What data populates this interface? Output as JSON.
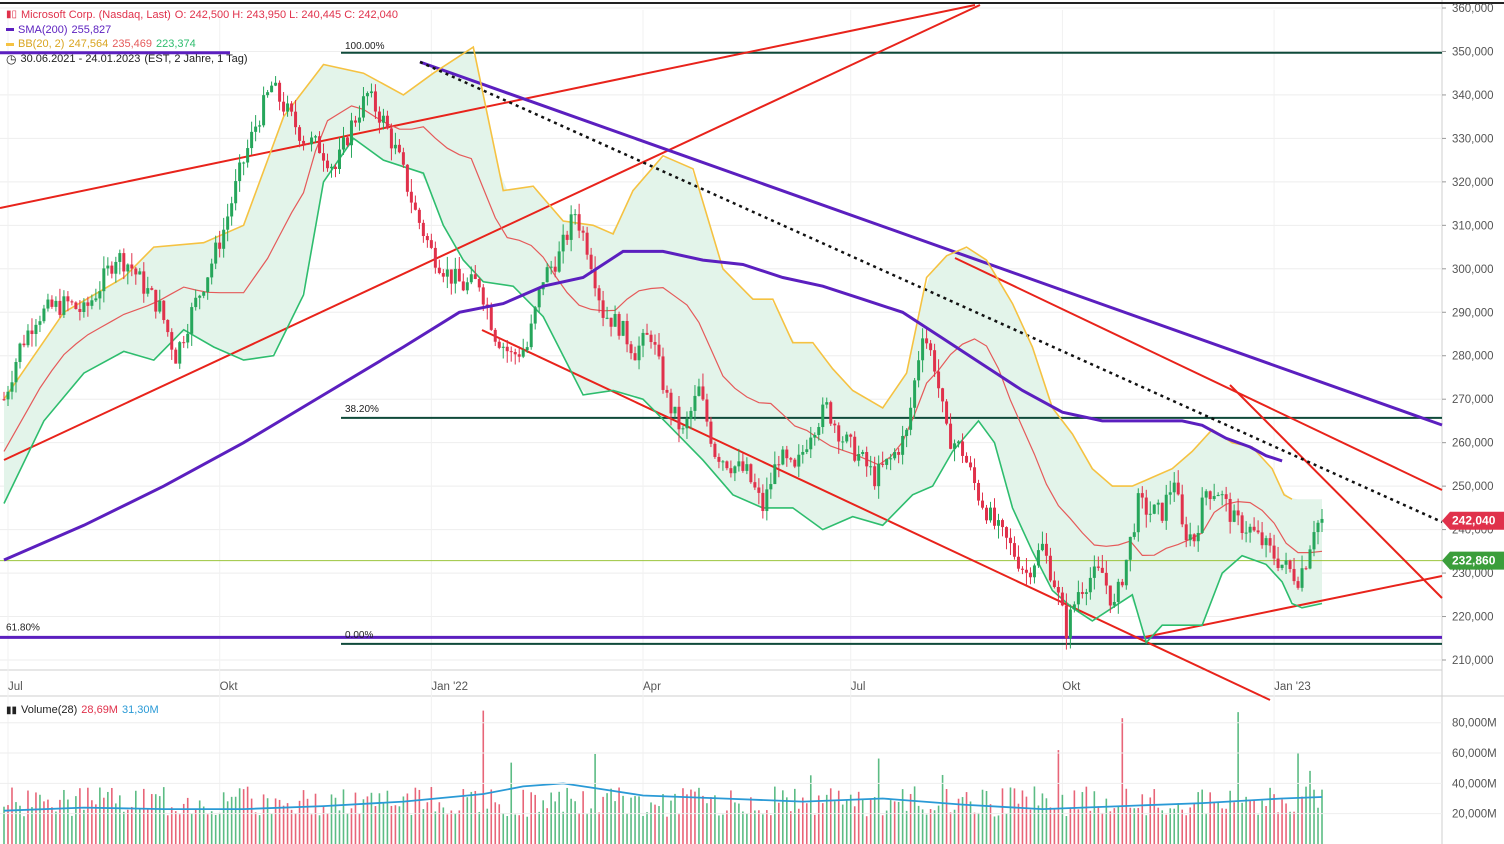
{
  "header": {
    "title": "Microsoft Corp. (Nasdaq, Last)",
    "ohlc": "O: 242,500  H: 243,950  L: 240,445  C: 242,040",
    "sma_label": "SMA(200)",
    "sma_value": "255,827",
    "bb_label": "BB(20, 2)",
    "bb_upper": "247,564",
    "bb_mid": "235,469",
    "bb_lower": "223,374",
    "range": "30.06.2021 - 24.01.2023",
    "range_detail": "(EST, 2 Jahre, 1 Tag)",
    "volume_label": "Volume(28)",
    "volume_value": "28,69M",
    "volume_avg": "31,30M"
  },
  "colors": {
    "up": "#26a65b",
    "down": "#e0314b",
    "sma": "#5b1fbf",
    "bb_upper": "#f5c242",
    "bb_mid": "#e55a5a",
    "bb_lower": "#2ebd6e",
    "band_fill": "#e3f4ea",
    "trend_red": "#e8231b",
    "fib_line": "#0f4a3a",
    "price_tag": "#e0314b",
    "level_tag": "#3b9e3b",
    "vol_avg": "#2a9ad6"
  },
  "chart_data": {
    "type": "candlestick",
    "ylim": [
      205,
      360
    ],
    "yticks": [
      "210,000",
      "220,000",
      "230,000",
      "240,000",
      "250,000",
      "260,000",
      "270,000",
      "280,000",
      "290,000",
      "300,000",
      "310,000",
      "320,000",
      "330,000",
      "340,000",
      "350,000",
      "360,000"
    ],
    "xticks": [
      "Jul",
      "Okt",
      "Jan '22",
      "Apr",
      "Jul",
      "Okt",
      "Jan '23"
    ],
    "last_price_label": "242,040",
    "level_label": "232,860",
    "fib_labels": [
      "100.00%",
      "38.20%",
      "61.80%",
      "0.00%"
    ],
    "volume_yticks": [
      "20,000M",
      "40,000M",
      "60,000M",
      "80,000M"
    ],
    "close_series": [
      [
        0,
        270
      ],
      [
        8,
        282
      ],
      [
        16,
        289
      ],
      [
        24,
        291
      ],
      [
        32,
        292
      ],
      [
        40,
        290
      ],
      [
        48,
        296
      ],
      [
        56,
        303
      ],
      [
        63,
        301
      ],
      [
        70,
        296
      ],
      [
        78,
        291
      ],
      [
        86,
        280
      ],
      [
        94,
        290
      ],
      [
        102,
        299
      ],
      [
        110,
        309
      ],
      [
        118,
        322
      ],
      [
        126,
        333
      ],
      [
        134,
        342
      ],
      [
        142,
        336
      ],
      [
        150,
        330
      ],
      [
        158,
        328
      ],
      [
        166,
        323
      ],
      [
        174,
        333
      ],
      [
        182,
        340
      ],
      [
        190,
        334
      ],
      [
        198,
        325
      ],
      [
        206,
        313
      ],
      [
        214,
        304
      ],
      [
        222,
        299
      ],
      [
        230,
        296
      ],
      [
        238,
        297
      ],
      [
        246,
        285
      ],
      [
        254,
        280
      ],
      [
        262,
        282
      ],
      [
        270,
        298
      ],
      [
        278,
        303
      ],
      [
        286,
        313
      ],
      [
        293,
        304
      ],
      [
        300,
        290
      ],
      [
        308,
        287
      ],
      [
        316,
        281
      ],
      [
        324,
        285
      ],
      [
        332,
        270
      ],
      [
        340,
        262
      ],
      [
        348,
        272
      ],
      [
        356,
        258
      ],
      [
        364,
        255
      ],
      [
        372,
        253
      ],
      [
        380,
        245
      ],
      [
        388,
        257
      ],
      [
        396,
        253
      ],
      [
        404,
        263
      ],
      [
        412,
        268
      ],
      [
        420,
        261
      ],
      [
        428,
        257
      ],
      [
        436,
        252
      ],
      [
        444,
        256
      ],
      [
        452,
        262
      ],
      [
        460,
        286
      ],
      [
        466,
        278
      ],
      [
        472,
        262
      ],
      [
        480,
        258
      ],
      [
        488,
        248
      ],
      [
        496,
        241
      ],
      [
        504,
        236
      ],
      [
        512,
        230
      ],
      [
        520,
        236
      ],
      [
        526,
        228
      ],
      [
        532,
        217
      ],
      [
        538,
        226
      ],
      [
        544,
        229
      ],
      [
        550,
        230
      ],
      [
        556,
        222
      ],
      [
        562,
        233
      ],
      [
        568,
        246
      ],
      [
        574,
        244
      ],
      [
        580,
        244
      ],
      [
        586,
        252
      ],
      [
        590,
        240
      ],
      [
        596,
        238
      ],
      [
        602,
        249
      ],
      [
        608,
        249
      ],
      [
        616,
        242
      ],
      [
        624,
        240
      ],
      [
        632,
        236
      ],
      [
        640,
        232
      ],
      [
        648,
        229
      ],
      [
        652,
        233
      ],
      [
        656,
        241
      ],
      [
        660,
        242
      ]
    ],
    "sma200_series": [
      [
        0,
        233
      ],
      [
        40,
        241
      ],
      [
        80,
        250
      ],
      [
        120,
        260
      ],
      [
        160,
        271
      ],
      [
        200,
        282
      ],
      [
        228,
        290
      ],
      [
        250,
        292
      ],
      [
        270,
        296
      ],
      [
        290,
        298
      ],
      [
        310,
        304
      ],
      [
        330,
        304
      ],
      [
        350,
        302
      ],
      [
        370,
        301
      ],
      [
        390,
        298
      ],
      [
        410,
        296
      ],
      [
        430,
        293
      ],
      [
        450,
        290
      ],
      [
        470,
        284
      ],
      [
        490,
        278
      ],
      [
        510,
        272
      ],
      [
        530,
        267
      ],
      [
        550,
        265
      ],
      [
        570,
        265
      ],
      [
        590,
        265
      ],
      [
        600,
        264
      ],
      [
        612,
        261
      ],
      [
        624,
        259
      ],
      [
        632,
        257
      ],
      [
        640,
        255.8
      ]
    ],
    "bb_upper_series": [
      [
        0,
        270
      ],
      [
        30,
        290
      ],
      [
        60,
        298
      ],
      [
        75,
        305
      ],
      [
        100,
        306
      ],
      [
        120,
        310
      ],
      [
        140,
        335
      ],
      [
        160,
        347
      ],
      [
        180,
        345
      ],
      [
        200,
        340
      ],
      [
        215,
        345
      ],
      [
        235,
        351
      ],
      [
        250,
        318
      ],
      [
        265,
        319
      ],
      [
        280,
        311
      ],
      [
        295,
        310
      ],
      [
        305,
        308
      ],
      [
        315,
        318
      ],
      [
        330,
        326
      ],
      [
        345,
        323
      ],
      [
        360,
        300
      ],
      [
        375,
        293
      ],
      [
        385,
        293
      ],
      [
        395,
        283
      ],
      [
        405,
        283
      ],
      [
        415,
        277
      ],
      [
        425,
        272
      ],
      [
        440,
        268
      ],
      [
        452,
        276
      ],
      [
        462,
        298
      ],
      [
        472,
        303
      ],
      [
        482,
        305
      ],
      [
        492,
        302
      ],
      [
        505,
        292
      ],
      [
        515,
        282
      ],
      [
        525,
        268
      ],
      [
        535,
        262
      ],
      [
        545,
        254
      ],
      [
        555,
        250
      ],
      [
        565,
        250
      ],
      [
        575,
        252
      ],
      [
        585,
        254
      ],
      [
        595,
        258
      ],
      [
        605,
        263
      ],
      [
        615,
        260
      ],
      [
        625,
        259
      ],
      [
        635,
        254
      ],
      [
        641,
        248
      ],
      [
        645,
        247
      ]
    ],
    "bb_lower_series": [
      [
        0,
        246
      ],
      [
        20,
        265
      ],
      [
        40,
        276
      ],
      [
        60,
        281
      ],
      [
        75,
        279
      ],
      [
        90,
        286
      ],
      [
        105,
        282
      ],
      [
        120,
        279
      ],
      [
        135,
        280
      ],
      [
        150,
        294
      ],
      [
        160,
        320
      ],
      [
        175,
        330
      ],
      [
        190,
        325
      ],
      [
        210,
        322
      ],
      [
        220,
        310
      ],
      [
        230,
        302
      ],
      [
        240,
        297
      ],
      [
        255,
        296
      ],
      [
        270,
        289
      ],
      [
        290,
        271
      ],
      [
        305,
        272
      ],
      [
        320,
        270
      ],
      [
        335,
        263
      ],
      [
        350,
        256
      ],
      [
        365,
        248
      ],
      [
        380,
        245
      ],
      [
        395,
        245
      ],
      [
        410,
        240
      ],
      [
        425,
        243
      ],
      [
        440,
        241
      ],
      [
        455,
        248
      ],
      [
        465,
        250
      ],
      [
        475,
        258
      ],
      [
        488,
        265
      ],
      [
        496,
        260
      ],
      [
        505,
        245
      ],
      [
        515,
        235
      ],
      [
        525,
        226
      ],
      [
        535,
        222
      ],
      [
        545,
        219
      ],
      [
        555,
        222
      ],
      [
        565,
        225
      ],
      [
        572,
        214
      ],
      [
        580,
        218
      ],
      [
        590,
        218
      ],
      [
        600,
        218
      ],
      [
        610,
        230
      ],
      [
        620,
        234
      ],
      [
        632,
        232
      ],
      [
        640,
        228
      ],
      [
        645,
        223
      ],
      [
        650,
        222
      ],
      [
        660,
        223
      ]
    ],
    "volume_avg_series": [
      [
        0,
        22
      ],
      [
        40,
        24
      ],
      [
        80,
        23
      ],
      [
        120,
        23
      ],
      [
        160,
        25
      ],
      [
        200,
        28
      ],
      [
        240,
        33
      ],
      [
        260,
        38
      ],
      [
        280,
        40
      ],
      [
        300,
        36
      ],
      [
        320,
        32
      ],
      [
        360,
        30
      ],
      [
        400,
        28
      ],
      [
        440,
        30
      ],
      [
        480,
        26
      ],
      [
        520,
        23
      ],
      [
        560,
        25
      ],
      [
        600,
        27
      ],
      [
        640,
        30
      ],
      [
        660,
        31
      ]
    ]
  }
}
